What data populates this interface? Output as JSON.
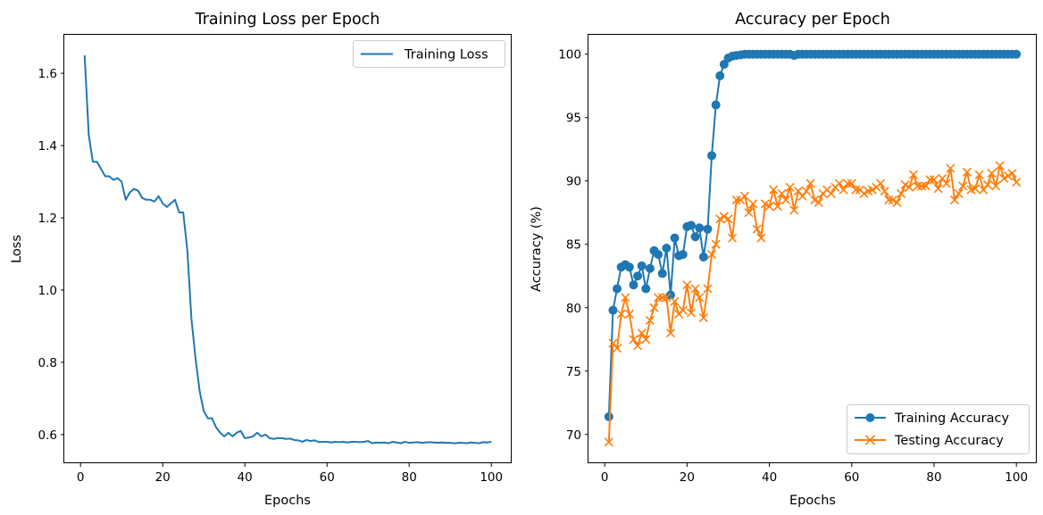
{
  "chart_data": [
    {
      "type": "line",
      "title": "Training Loss per Epoch",
      "xlabel": "Epochs",
      "ylabel": "Loss",
      "xlim": [
        -3.95,
        104.95
      ],
      "ylim": [
        0.5206,
        1.7066
      ],
      "xticks": [
        0,
        20,
        40,
        60,
        80,
        100
      ],
      "yticks": [
        0.6,
        0.8,
        1.0,
        1.2,
        1.4,
        1.6
      ],
      "ytick_labels": [
        "0.6",
        "0.8",
        "1.0",
        "1.2",
        "1.4",
        "1.6"
      ],
      "grid": false,
      "legend_position": "upper right",
      "series": [
        {
          "name": "Training Loss",
          "color": "#1f77b4",
          "marker": "none",
          "x": [
            1,
            2,
            3,
            4,
            5,
            6,
            7,
            8,
            9,
            10,
            11,
            12,
            13,
            14,
            15,
            16,
            17,
            18,
            19,
            20,
            21,
            22,
            23,
            24,
            25,
            26,
            27,
            28,
            29,
            30,
            31,
            32,
            33,
            34,
            35,
            36,
            37,
            38,
            39,
            40,
            41,
            42,
            43,
            44,
            45,
            46,
            47,
            48,
            49,
            50,
            51,
            52,
            53,
            54,
            55,
            56,
            57,
            58,
            59,
            60,
            61,
            62,
            63,
            64,
            65,
            66,
            67,
            68,
            69,
            70,
            71,
            72,
            73,
            74,
            75,
            76,
            77,
            78,
            79,
            80,
            81,
            82,
            83,
            84,
            85,
            86,
            87,
            88,
            89,
            90,
            91,
            92,
            93,
            94,
            95,
            96,
            97,
            98,
            99,
            100
          ],
          "values": [
            1.65,
            1.43,
            1.355,
            1.355,
            1.335,
            1.315,
            1.315,
            1.305,
            1.31,
            1.3,
            1.25,
            1.27,
            1.28,
            1.275,
            1.255,
            1.25,
            1.25,
            1.245,
            1.26,
            1.24,
            1.23,
            1.24,
            1.25,
            1.215,
            1.215,
            1.11,
            0.92,
            0.81,
            0.72,
            0.665,
            0.645,
            0.645,
            0.62,
            0.605,
            0.595,
            0.605,
            0.595,
            0.605,
            0.61,
            0.59,
            0.592,
            0.595,
            0.605,
            0.595,
            0.6,
            0.59,
            0.588,
            0.59,
            0.59,
            0.588,
            0.589,
            0.585,
            0.584,
            0.58,
            0.585,
            0.582,
            0.584,
            0.579,
            0.58,
            0.58,
            0.578,
            0.58,
            0.579,
            0.58,
            0.578,
            0.58,
            0.58,
            0.579,
            0.58,
            0.582,
            0.576,
            0.578,
            0.577,
            0.578,
            0.576,
            0.58,
            0.578,
            0.576,
            0.58,
            0.577,
            0.578,
            0.579,
            0.577,
            0.578,
            0.579,
            0.578,
            0.577,
            0.578,
            0.577,
            0.577,
            0.576,
            0.577,
            0.577,
            0.576,
            0.578,
            0.577,
            0.576,
            0.579,
            0.578,
            0.58
          ]
        }
      ]
    },
    {
      "type": "line",
      "title": "Accuracy per Epoch",
      "xlabel": "Epochs",
      "ylabel": "Accuracy (%)",
      "xlim": [
        -3.95,
        104.95
      ],
      "ylim": [
        67.73,
        101.53
      ],
      "xticks": [
        0,
        20,
        40,
        60,
        80,
        100
      ],
      "yticks": [
        70,
        75,
        80,
        85,
        90,
        95,
        100
      ],
      "grid": false,
      "legend_position": "lower right",
      "series": [
        {
          "name": "Training Accuracy",
          "color": "#1f77b4",
          "marker": "o",
          "x": [
            1,
            2,
            3,
            4,
            5,
            6,
            7,
            8,
            9,
            10,
            11,
            12,
            13,
            14,
            15,
            16,
            17,
            18,
            19,
            20,
            21,
            22,
            23,
            24,
            25,
            26,
            27,
            28,
            29,
            30,
            31,
            32,
            33,
            34,
            35,
            36,
            37,
            38,
            39,
            40,
            41,
            42,
            43,
            44,
            45,
            46,
            47,
            48,
            49,
            50,
            51,
            52,
            53,
            54,
            55,
            56,
            57,
            58,
            59,
            60,
            61,
            62,
            63,
            64,
            65,
            66,
            67,
            68,
            69,
            70,
            71,
            72,
            73,
            74,
            75,
            76,
            77,
            78,
            79,
            80,
            81,
            82,
            83,
            84,
            85,
            86,
            87,
            88,
            89,
            90,
            91,
            92,
            93,
            94,
            95,
            96,
            97,
            98,
            99,
            100
          ],
          "values": [
            71.4,
            79.8,
            81.5,
            83.2,
            83.4,
            83.2,
            81.8,
            82.5,
            83.3,
            81.5,
            83.1,
            84.5,
            84.2,
            82.7,
            84.7,
            81.0,
            85.5,
            84.1,
            84.2,
            86.4,
            86.5,
            85.6,
            86.3,
            84.0,
            86.2,
            92.0,
            96.0,
            98.3,
            99.2,
            99.7,
            99.85,
            99.9,
            99.95,
            100,
            100,
            100,
            100,
            100,
            100,
            100,
            100,
            100,
            100,
            100,
            100,
            99.9,
            100,
            100,
            100,
            100,
            100,
            100,
            100,
            100,
            100,
            100,
            100,
            100,
            100,
            100,
            100,
            100,
            100,
            100,
            100,
            100,
            100,
            100,
            100,
            100,
            100,
            100,
            100,
            100,
            100,
            100,
            100,
            100,
            100,
            100,
            100,
            100,
            100,
            100,
            100,
            100,
            100,
            100,
            100,
            100,
            100,
            100,
            100,
            100,
            100,
            100,
            100,
            100,
            100,
            100
          ]
        },
        {
          "name": "Testing Accuracy",
          "color": "#ff7f0e",
          "marker": "x",
          "x": [
            1,
            2,
            3,
            4,
            5,
            6,
            7,
            8,
            9,
            10,
            11,
            12,
            13,
            14,
            15,
            16,
            17,
            18,
            19,
            20,
            21,
            22,
            23,
            24,
            25,
            26,
            27,
            28,
            29,
            30,
            31,
            32,
            33,
            34,
            35,
            36,
            37,
            38,
            39,
            40,
            41,
            42,
            43,
            44,
            45,
            46,
            47,
            48,
            49,
            50,
            51,
            52,
            53,
            54,
            55,
            56,
            57,
            58,
            59,
            60,
            61,
            62,
            63,
            64,
            65,
            66,
            67,
            68,
            69,
            70,
            71,
            72,
            73,
            74,
            75,
            76,
            77,
            78,
            79,
            80,
            81,
            82,
            83,
            84,
            85,
            86,
            87,
            88,
            89,
            90,
            91,
            92,
            93,
            94,
            95,
            96,
            97,
            98,
            99,
            100
          ],
          "values": [
            69.4,
            77.2,
            76.8,
            79.5,
            80.8,
            79.5,
            77.5,
            77.0,
            78.0,
            77.5,
            79.0,
            80.0,
            80.8,
            80.8,
            80.8,
            78.0,
            80.5,
            79.5,
            79.8,
            81.8,
            79.6,
            81.5,
            80.8,
            79.2,
            81.5,
            84.2,
            85.0,
            87.0,
            87.2,
            87.0,
            85.5,
            88.5,
            88.5,
            88.8,
            87.5,
            88.2,
            86.2,
            85.5,
            88.2,
            88.0,
            89.3,
            88.0,
            89.0,
            88.5,
            89.5,
            87.7,
            89.2,
            88.8,
            89.2,
            89.8,
            88.5,
            88.3,
            89.0,
            89.3,
            89.0,
            89.5,
            89.8,
            89.3,
            89.8,
            89.8,
            89.3,
            89.3,
            89.0,
            89.2,
            89.3,
            89.5,
            89.8,
            89.2,
            88.5,
            88.5,
            88.3,
            89.0,
            89.7,
            89.5,
            90.5,
            89.6,
            89.6,
            89.6,
            90.1,
            90.1,
            89.4,
            90.2,
            89.8,
            91.0,
            88.5,
            89.0,
            89.6,
            90.7,
            89.3,
            89.4,
            90.5,
            89.3,
            89.7,
            90.6,
            89.6,
            91.2,
            90.2,
            90.4,
            90.6,
            89.9
          ]
        }
      ]
    }
  ]
}
